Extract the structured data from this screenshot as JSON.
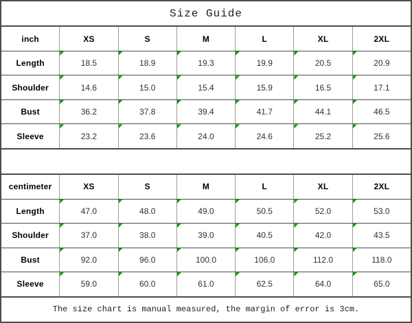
{
  "title": "Size Guide",
  "footer_note": "The size chart is manual measured, the margin of error is 3cm.",
  "size_columns": [
    "XS",
    "S",
    "M",
    "L",
    "XL",
    "2XL"
  ],
  "tables": [
    {
      "unit_label": "inch",
      "rows": [
        {
          "label": "Length",
          "values": [
            "18.5",
            "18.9",
            "19.3",
            "19.9",
            "20.5",
            "20.9"
          ]
        },
        {
          "label": "Shoulder",
          "values": [
            "14.6",
            "15.0",
            "15.4",
            "15.9",
            "16.5",
            "17.1"
          ]
        },
        {
          "label": "Bust",
          "values": [
            "36.2",
            "37.8",
            "39.4",
            "41.7",
            "44.1",
            "46.5"
          ]
        },
        {
          "label": "Sleeve",
          "values": [
            "23.2",
            "23.6",
            "24.0",
            "24.6",
            "25.2",
            "25.6"
          ]
        }
      ]
    },
    {
      "unit_label": "centimeter",
      "rows": [
        {
          "label": "Length",
          "values": [
            "47.0",
            "48.0",
            "49.0",
            "50.5",
            "52.0",
            "53.0"
          ]
        },
        {
          "label": "Shoulder",
          "values": [
            "37.0",
            "38.0",
            "39.0",
            "40.5",
            "42.0",
            "43.5"
          ]
        },
        {
          "label": "Bust",
          "values": [
            "92.0",
            "96.0",
            "100.0",
            "106.0",
            "112.0",
            "118.0"
          ]
        },
        {
          "label": "Sleeve",
          "values": [
            "59.0",
            "60.0",
            "61.0",
            "62.5",
            "64.0",
            "65.0"
          ]
        }
      ]
    }
  ],
  "colors": {
    "horizontal_grid": "#4b4b4b",
    "vertical_grid": "#9a9a9a",
    "cell_flag_green": "#089b08",
    "value_text": "#303030",
    "label_text": "#000000"
  }
}
